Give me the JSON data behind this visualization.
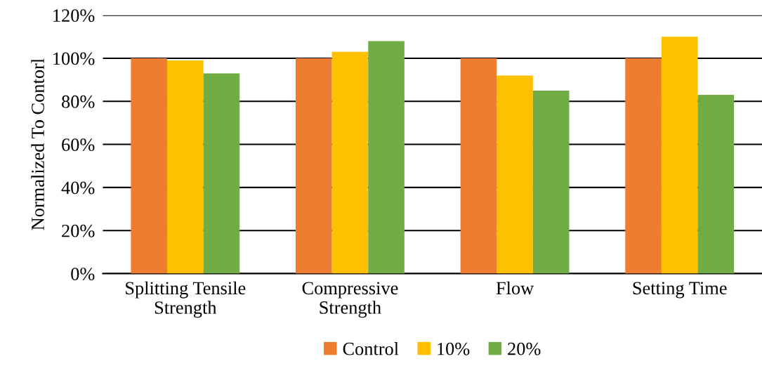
{
  "chart_data": {
    "type": "bar",
    "ylabel": "Normalized To Contorl",
    "categories": [
      "Splitting Tensile\nStrength",
      "Compressive\nStrength",
      "Flow",
      "Setting Time"
    ],
    "series": [
      {
        "name": "Control",
        "color": "#ed7d31",
        "values": [
          100,
          100,
          100,
          100
        ]
      },
      {
        "name": "10%",
        "color": "#ffc000",
        "values": [
          99,
          103,
          92,
          110
        ]
      },
      {
        "name": "20%",
        "color": "#70ad47",
        "values": [
          93,
          108,
          85,
          83
        ]
      }
    ],
    "ylim": [
      0,
      120
    ],
    "yticks": [
      {
        "value": 0,
        "label": "0%"
      },
      {
        "value": 20,
        "label": "20%"
      },
      {
        "value": 40,
        "label": "40%"
      },
      {
        "value": 60,
        "label": "60%"
      },
      {
        "value": 80,
        "label": "80%"
      },
      {
        "value": 100,
        "label": "100%"
      },
      {
        "value": 120,
        "label": "120%"
      }
    ],
    "grid": "y",
    "legend": "bottom"
  }
}
